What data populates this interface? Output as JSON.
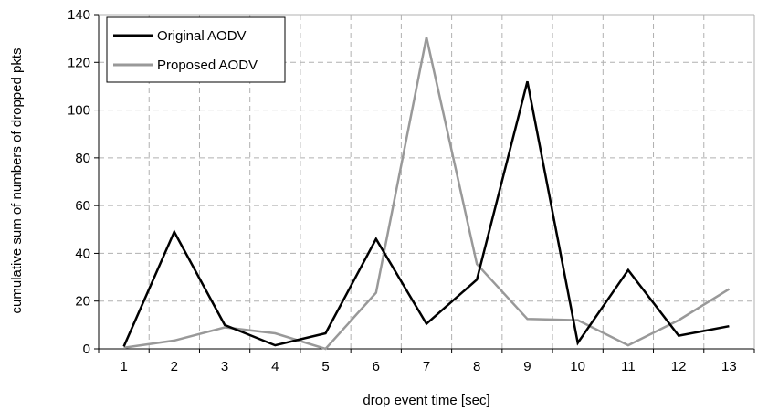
{
  "chart_data": {
    "type": "line",
    "title": "",
    "xlabel": "drop event time [sec]",
    "ylabel": "cumulative sum of numbers of dropped pkts",
    "x": [
      1,
      2,
      3,
      4,
      5,
      6,
      7,
      8,
      9,
      10,
      11,
      12,
      13
    ],
    "categories": [
      "1",
      "2",
      "3",
      "4",
      "5",
      "6",
      "7",
      "8",
      "9",
      "10",
      "11",
      "12",
      "13"
    ],
    "ylim": [
      0,
      140
    ],
    "yticks": [
      "0",
      "20",
      "40",
      "60",
      "80",
      "100",
      "120",
      "140"
    ],
    "grid": true,
    "legend_position": "top-left",
    "series": [
      {
        "name": "Original AODV",
        "color": "#000000",
        "values": [
          1,
          49,
          10,
          1.5,
          6.5,
          46,
          10.5,
          29,
          112,
          2.5,
          33,
          5.5,
          9.5
        ]
      },
      {
        "name": "Proposed AODV",
        "color": "#999999",
        "values": [
          0.5,
          3.5,
          9,
          6.5,
          0,
          23.5,
          130.5,
          35.5,
          12.5,
          12,
          1.5,
          12,
          25
        ]
      }
    ]
  }
}
